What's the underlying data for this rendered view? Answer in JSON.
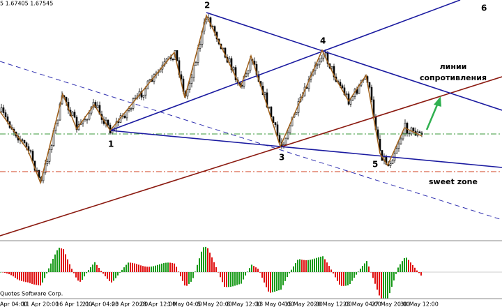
{
  "header": "5 1.67405 1.67545",
  "wave_labels": [
    "1",
    "2",
    "3",
    "4",
    "5",
    "6"
  ],
  "annotations": {
    "resistance": [
      "линии",
      "сопротивления"
    ],
    "zone": "sweet zone"
  },
  "copyright": "Quotes Software Corp.",
  "x_axis_labels": [
    "Apr 04:00",
    "11 Apr 20:00",
    "16 Apr 12:00",
    "21 Apr 04:00",
    "23 Apr 20:00",
    "28 Apr 12:00",
    "1 May 04:00",
    "5 May 20:00",
    "8 May 12:00",
    "13 May 04:00",
    "15 May 20:00",
    "20 May 12:00",
    "23 May 04:00",
    "27 May 20:00",
    "30 May 12:00"
  ]
}
